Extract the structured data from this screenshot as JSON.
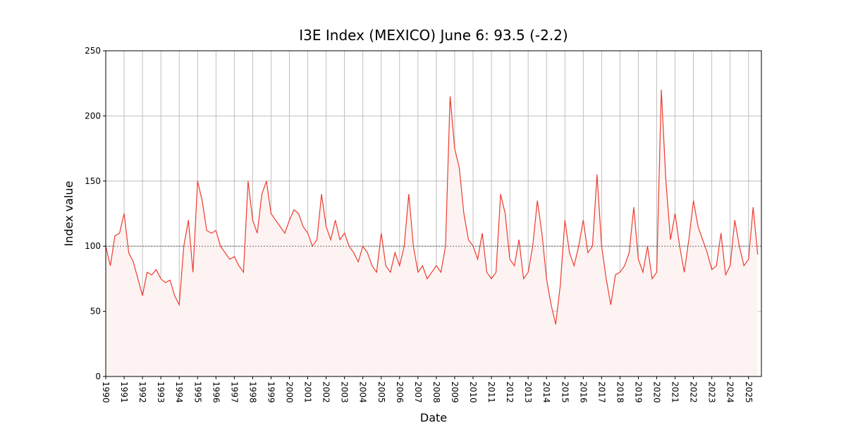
{
  "chart_data": {
    "type": "line",
    "title": "I3E Index (MEXICO) June 6: 93.5 (-2.2)",
    "xlabel": "Date",
    "ylabel": "Index value",
    "x": [
      1990,
      1990.25,
      1990.5,
      1990.75,
      1991,
      1991.25,
      1991.5,
      1991.75,
      1992,
      1992.25,
      1992.5,
      1992.75,
      1993,
      1993.25,
      1993.5,
      1993.75,
      1994,
      1994.25,
      1994.5,
      1994.75,
      1995,
      1995.25,
      1995.5,
      1995.75,
      1996,
      1996.25,
      1996.5,
      1996.75,
      1997,
      1997.25,
      1997.5,
      1997.75,
      1998,
      1998.25,
      1998.5,
      1998.75,
      1999,
      1999.25,
      1999.5,
      1999.75,
      2000,
      2000.25,
      2000.5,
      2000.75,
      2001,
      2001.25,
      2001.5,
      2001.75,
      2002,
      2002.25,
      2002.5,
      2002.75,
      2003,
      2003.25,
      2003.5,
      2003.75,
      2004,
      2004.25,
      2004.5,
      2004.75,
      2005,
      2005.25,
      2005.5,
      2005.75,
      2006,
      2006.25,
      2006.5,
      2006.75,
      2007,
      2007.25,
      2007.5,
      2007.75,
      2008,
      2008.25,
      2008.5,
      2008.75,
      2009,
      2009.25,
      2009.5,
      2009.75,
      2010,
      2010.25,
      2010.5,
      2010.75,
      2011,
      2011.25,
      2011.5,
      2011.75,
      2012,
      2012.25,
      2012.5,
      2012.75,
      2013,
      2013.25,
      2013.5,
      2013.75,
      2014,
      2014.25,
      2014.5,
      2014.75,
      2015,
      2015.25,
      2015.5,
      2015.75,
      2016,
      2016.25,
      2016.5,
      2016.75,
      2017,
      2017.25,
      2017.5,
      2017.75,
      2018,
      2018.25,
      2018.5,
      2018.75,
      2019,
      2019.25,
      2019.5,
      2019.75,
      2020,
      2020.25,
      2020.5,
      2020.75,
      2021,
      2021.25,
      2021.5,
      2021.75,
      2022,
      2022.25,
      2022.5,
      2022.75,
      2023,
      2023.25,
      2023.5,
      2023.75,
      2024,
      2024.25,
      2024.5,
      2024.75,
      2025,
      2025.25,
      2025.5
    ],
    "series": [
      {
        "name": "I3E Index",
        "color": "#ee3b2f",
        "values": [
          100,
          85,
          108,
          110,
          125,
          95,
          88,
          75,
          62,
          80,
          78,
          82,
          75,
          72,
          74,
          62,
          55,
          100,
          120,
          80,
          150,
          135,
          112,
          110,
          112,
          100,
          95,
          90,
          92,
          85,
          80,
          150,
          120,
          110,
          140,
          150,
          125,
          120,
          115,
          110,
          120,
          128,
          125,
          115,
          110,
          100,
          105,
          140,
          115,
          105,
          120,
          105,
          110,
          100,
          95,
          88,
          100,
          95,
          85,
          80,
          110,
          85,
          80,
          95,
          85,
          100,
          140,
          100,
          80,
          85,
          75,
          80,
          85,
          80,
          100,
          215,
          175,
          160,
          125,
          105,
          100,
          90,
          110,
          80,
          75,
          80,
          140,
          125,
          90,
          85,
          105,
          75,
          80,
          100,
          135,
          110,
          75,
          55,
          40,
          70,
          120,
          95,
          85,
          100,
          120,
          95,
          100,
          155,
          100,
          75,
          55,
          78,
          80,
          85,
          95,
          130,
          90,
          80,
          100,
          75,
          80,
          220,
          150,
          105,
          125,
          100,
          80,
          105,
          135,
          115,
          105,
          95,
          82,
          85,
          110,
          78,
          85,
          120,
          100,
          85,
          90,
          130,
          93.5
        ]
      }
    ],
    "fill": true,
    "fill_color": "#fdf3f2",
    "reference_line": 100,
    "xlim": [
      1990,
      2025.7
    ],
    "xticks": [
      1990,
      1991,
      1992,
      1993,
      1994,
      1995,
      1996,
      1997,
      1998,
      1999,
      2000,
      2001,
      2002,
      2003,
      2004,
      2005,
      2006,
      2007,
      2008,
      2009,
      2010,
      2011,
      2012,
      2013,
      2014,
      2015,
      2016,
      2017,
      2018,
      2019,
      2020,
      2021,
      2022,
      2023,
      2024,
      2025
    ],
    "ylim": [
      0,
      250
    ],
    "yticks": [
      0,
      50,
      100,
      150,
      200,
      250
    ],
    "grid": true
  }
}
